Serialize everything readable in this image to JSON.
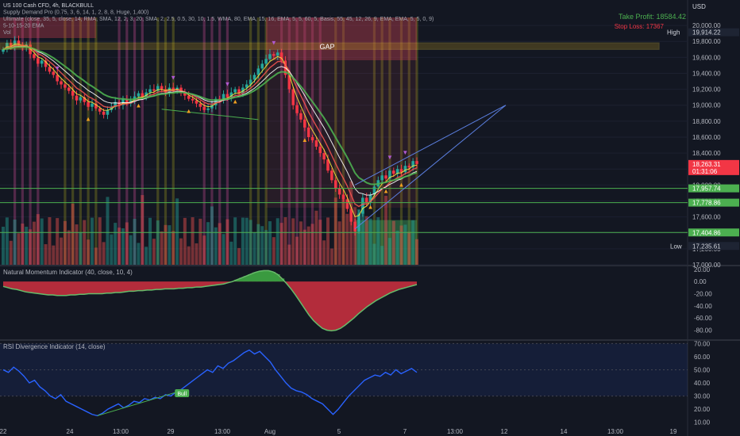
{
  "header": {
    "currency": "USD",
    "lines": [
      "US 100 Cash CFD, 4h, BLACKBULL",
      "Supply Demand Pro (0.75, 3, 6, 14, 1, 2, 8, 8, Huge, 1,400)",
      "Ultimate (close, 35, 5, close, 14, RMA, SMA, 12, 2, 3, 20, SMA, 2, 2.5, 0.5, 30, 10, 1.5, WMA, 80, EMA, 15, 16, EMA, 5, 5, 60, 5, Basis, 55, 45, 12, 26, 9, EMA, EMA, 5, 5, 0, 9)",
      "5-10-15-20 EMA",
      "Vol"
    ]
  },
  "annotations": {
    "take_profit": "Take Profit: 18584.42",
    "stop_loss": "Stop Loss: 17367",
    "gap": "GAP",
    "high_label": "High",
    "low_label": "Low",
    "bull_label": "Bull"
  },
  "price_badges": [
    {
      "value": "19,914.22",
      "bg": "#1e2433",
      "fg": "#d1d4dc"
    },
    {
      "value": "18,263.31",
      "bg": "#f23645",
      "fg": "#ffffff"
    },
    {
      "value": "01:31:06",
      "bg": "#f23645",
      "fg": "#ffffff"
    },
    {
      "value": "17,957.74",
      "bg": "#4caf50",
      "fg": "#ffffff"
    },
    {
      "value": "17,778.86",
      "bg": "#4caf50",
      "fg": "#ffffff"
    },
    {
      "value": "17,404.86",
      "bg": "#4caf50",
      "fg": "#ffffff"
    },
    {
      "value": "17,235.61",
      "bg": "#1e2433",
      "fg": "#d1d4dc"
    }
  ],
  "panes": {
    "momentum_title": "Natural Momentum Indicator (40, close, 10, 4)",
    "rsi_title": "RSI Divergence Indicator (14, close)"
  },
  "chart_data": [
    {
      "type": "candlestick",
      "title": "US 100 Cash CFD, 4h, BLACKBULL",
      "y_ticks": [
        "20,000.00",
        "19,800.00",
        "19,600.00",
        "19,400.00",
        "19,200.00",
        "19,000.00",
        "18,800.00",
        "18,600.00",
        "18,400.00",
        "18,200.00",
        "18,000.00",
        "17,800.00",
        "17,600.00",
        "17,400.00",
        "17,200.00",
        "17,000.00"
      ],
      "ylim": [
        17000,
        20100
      ],
      "x_ticks": [
        "22",
        "24",
        "13:00",
        "29",
        "13:00",
        "Aug",
        "5",
        "7",
        "13:00",
        "12",
        "14",
        "13:00",
        "19"
      ],
      "levels": [
        17957.74,
        17778.86,
        17404.86
      ],
      "gap_zone": [
        19700,
        19780
      ],
      "projection": {
        "from": [
          17450,
          18000
        ],
        "to": 19000
      },
      "close_series": [
        19700,
        19780,
        19740,
        19810,
        19760,
        19720,
        19760,
        19640,
        19590,
        19520,
        19560,
        19480,
        19420,
        19380,
        19300,
        19260,
        19220,
        19180,
        19120,
        19060,
        19100,
        19040,
        18980,
        19020,
        18960,
        18920,
        18880,
        18940,
        18980,
        19040,
        19000,
        19080,
        19020,
        19060,
        19110,
        19150,
        19100,
        19160,
        19200,
        19180,
        19240,
        19200,
        19160,
        19220,
        19180,
        19220,
        19160,
        19120,
        19080,
        19060,
        19020,
        18980,
        18940,
        18960,
        19000,
        19080,
        19060,
        19140,
        19100,
        19160,
        19200,
        19150,
        19220,
        19260,
        19320,
        19380,
        19460,
        19520,
        19580,
        19640,
        19620,
        19660,
        19560,
        19380,
        19200,
        19000,
        18900,
        18820,
        18720,
        18600,
        18560,
        18480,
        18400,
        18320,
        18180,
        18060,
        17960,
        17880,
        17820,
        17700,
        17540,
        17420,
        17640,
        17840,
        17780,
        17880,
        17980,
        18060,
        18120,
        18080,
        18180,
        18140,
        18200,
        18160,
        18240,
        18220,
        18300,
        18263.31
      ]
    },
    {
      "type": "area",
      "title": "Natural Momentum Indicator (40, close, 10, 4)",
      "y_ticks": [
        "20.00",
        "0.00",
        "-20.00",
        "-40.00",
        "-60.00",
        "-80.00"
      ],
      "ylim": [
        -95,
        25
      ],
      "values": [
        -8,
        -10,
        -12,
        -13,
        -15,
        -17,
        -18,
        -19,
        -20,
        -21,
        -22,
        -22,
        -23,
        -23,
        -23,
        -22,
        -22,
        -21,
        -21,
        -20,
        -20,
        -20,
        -20,
        -19,
        -19,
        -18,
        -18,
        -17,
        -16,
        -16,
        -15,
        -15,
        -14,
        -14,
        -13,
        -13,
        -12,
        -12,
        -12,
        -11,
        -11,
        -10,
        -10,
        -9,
        -9,
        -8,
        -7,
        -6,
        -5,
        -4,
        -2,
        0,
        3,
        6,
        9,
        12,
        15,
        17,
        18,
        18,
        16,
        12,
        5,
        -3,
        -12,
        -22,
        -33,
        -44,
        -55,
        -64,
        -71,
        -77,
        -80,
        -81,
        -80,
        -77,
        -72,
        -66,
        -60,
        -53,
        -47,
        -41,
        -36,
        -31,
        -27,
        -23,
        -19,
        -16,
        -13,
        -11,
        -9,
        -7,
        -5
      ]
    },
    {
      "type": "line",
      "title": "RSI Divergence Indicator (14, close)",
      "y_ticks": [
        "70.00",
        "60.00",
        "50.00",
        "40.00",
        "30.00",
        "20.00",
        "10.00"
      ],
      "ylim": [
        8,
        72
      ],
      "values": [
        50,
        48,
        52,
        49,
        45,
        40,
        42,
        37,
        34,
        30,
        28,
        31,
        26,
        24,
        22,
        20,
        18,
        16,
        15,
        17,
        20,
        22,
        24,
        21,
        23,
        26,
        25,
        28,
        27,
        29,
        28,
        31,
        30,
        33,
        35,
        38,
        41,
        44,
        47,
        50,
        48,
        53,
        51,
        55,
        57,
        60,
        63,
        65,
        62,
        64,
        60,
        56,
        50,
        45,
        40,
        36,
        34,
        33,
        31,
        28,
        26,
        24,
        20,
        16,
        20,
        25,
        30,
        34,
        38,
        42,
        44,
        46,
        45,
        48,
        46,
        50,
        47,
        49,
        51,
        48
      ]
    }
  ]
}
